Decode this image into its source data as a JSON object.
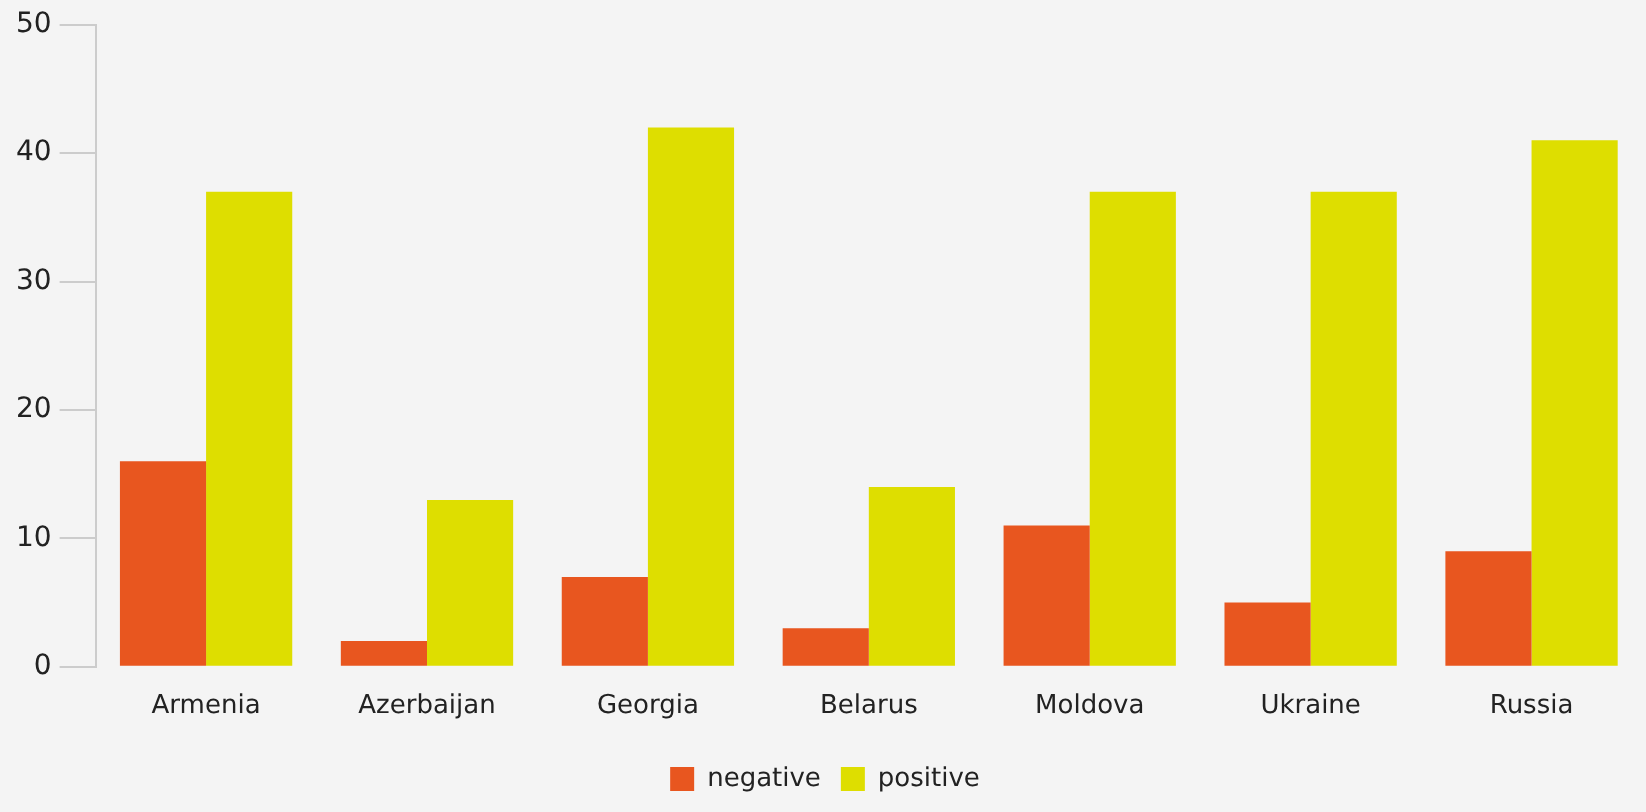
{
  "chart_data": {
    "type": "bar",
    "categories": [
      "Armenia",
      "Azerbaijan",
      "Georgia",
      "Belarus",
      "Moldova",
      "Ukraine",
      "Russia"
    ],
    "series": [
      {
        "name": "negative",
        "color": "#e8561f",
        "values": [
          16,
          2,
          7,
          3,
          11,
          5,
          9
        ]
      },
      {
        "name": "positive",
        "color": "#dede00",
        "values": [
          37,
          13,
          42,
          14,
          37,
          37,
          41
        ]
      }
    ],
    "ylim": [
      0,
      50
    ],
    "yticks": [
      0,
      10,
      20,
      30,
      40,
      50
    ],
    "grid": false,
    "legend": "bottom"
  }
}
